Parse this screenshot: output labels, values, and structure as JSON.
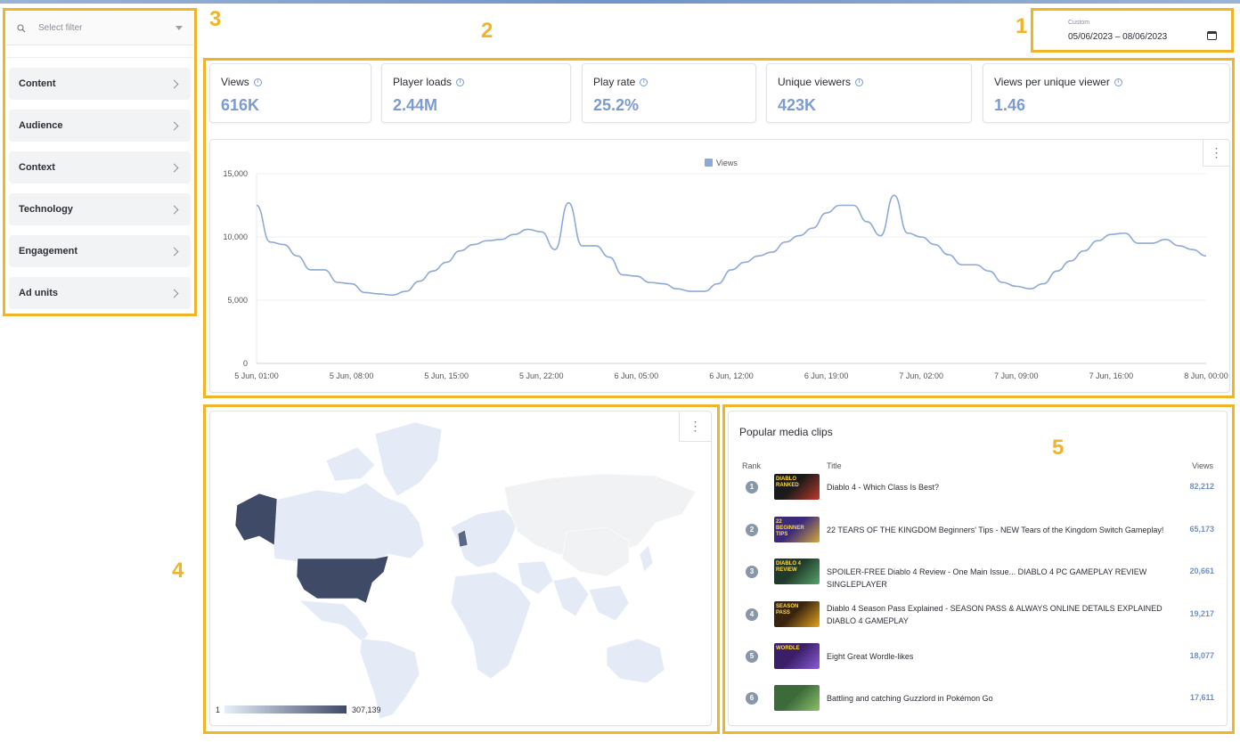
{
  "sidebar": {
    "filter_placeholder": "Select filter",
    "items": [
      {
        "label": "Content"
      },
      {
        "label": "Audience"
      },
      {
        "label": "Context"
      },
      {
        "label": "Technology"
      },
      {
        "label": "Engagement"
      },
      {
        "label": "Ad units"
      }
    ]
  },
  "date_range": {
    "label": "Custom",
    "value": "05/06/2023 – 08/06/2023"
  },
  "kpis": [
    {
      "label": "Views",
      "value": "616K"
    },
    {
      "label": "Player loads",
      "value": "2.44M"
    },
    {
      "label": "Play rate",
      "value": "25.2%"
    },
    {
      "label": "Unique viewers",
      "value": "423K"
    },
    {
      "label": "Views per unique viewer",
      "value": "1.46"
    }
  ],
  "chart_data": {
    "type": "line",
    "legend": "Views",
    "y_ticks": [
      "15,000",
      "10,000",
      "5,000",
      "0"
    ],
    "ylim": [
      0,
      15000
    ],
    "x_tick_labels": [
      "5 Jun, 01:00",
      "5 Jun, 08:00",
      "5 Jun, 15:00",
      "5 Jun, 22:00",
      "6 Jun, 05:00",
      "6 Jun, 12:00",
      "6 Jun, 19:00",
      "7 Jun, 02:00",
      "7 Jun, 09:00",
      "7 Jun, 16:00",
      "8 Jun, 00:00"
    ],
    "series": [
      {
        "name": "Views",
        "color": "#8fa9d6",
        "values": [
          12500,
          9600,
          9400,
          8500,
          7400,
          7400,
          6400,
          6300,
          5600,
          5500,
          5400,
          5700,
          6500,
          7300,
          8000,
          8900,
          9400,
          9700,
          9800,
          10200,
          10600,
          10400,
          9000,
          12700,
          9300,
          9300,
          8400,
          7000,
          6900,
          6400,
          6300,
          5900,
          5700,
          5700,
          6300,
          7400,
          8000,
          8500,
          8800,
          9600,
          10100,
          10700,
          11900,
          12500,
          12500,
          11200,
          10100,
          13300,
          10300,
          10000,
          9400,
          8600,
          7800,
          7800,
          7300,
          6400,
          6100,
          5900,
          6300,
          7300,
          8100,
          8900,
          9700,
          10200,
          10300,
          9500,
          9500,
          9800,
          9300,
          9000,
          8500
        ]
      }
    ]
  },
  "map": {
    "legend_min": "1",
    "legend_max": "307,139",
    "low_color": "#e6eef9",
    "high_color": "#3e4a66"
  },
  "clips": {
    "title": "Popular media clips",
    "headers": {
      "rank": "Rank",
      "title": "Title",
      "views": "Views"
    },
    "rows": [
      {
        "rank": "1",
        "title": "Diablo 4 - Which Class Is Best?",
        "views": "82,212",
        "thumb_text": "DIABLO RANKED"
      },
      {
        "rank": "2",
        "title": "22 TEARS OF THE KINGDOM Beginners' Tips - NEW Tears of the Kingdom Switch Gameplay!",
        "views": "65,173",
        "thumb_text": "22 BEGINNER TIPS"
      },
      {
        "rank": "3",
        "title": "SPOILER-FREE Diablo 4 Review - One Main Issue... DIABLO 4 PC GAMEPLAY REVIEW SINGLEPLAYER",
        "views": "20,661",
        "thumb_text": "DIABLO 4 REVIEW"
      },
      {
        "rank": "4",
        "title": "Diablo 4 Season Pass Explained - SEASON PASS & ALWAYS ONLINE DETAILS EXPLAINED DIABLO 4 GAMEPLAY",
        "views": "19,217",
        "thumb_text": "SEASON PASS"
      },
      {
        "rank": "5",
        "title": "Eight Great Wordle-likes",
        "views": "18,077",
        "thumb_text": "WORDLE"
      },
      {
        "rank": "6",
        "title": "Battling and catching Guzzlord in Pokémon Go",
        "views": "17,611",
        "thumb_text": ""
      }
    ]
  },
  "callouts": [
    "1",
    "2",
    "3",
    "4",
    "5"
  ]
}
